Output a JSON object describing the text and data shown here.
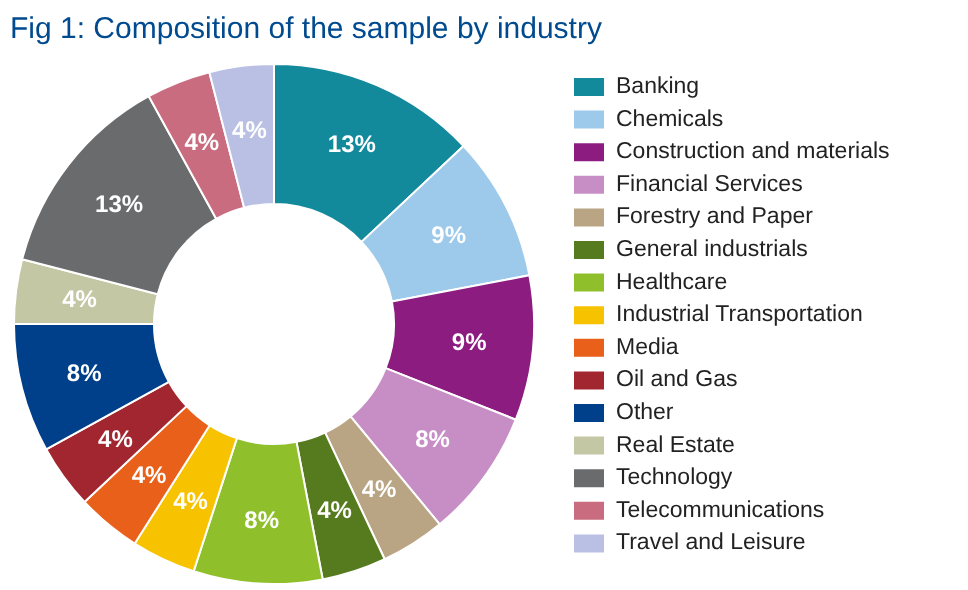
{
  "chart_data": {
    "type": "donut",
    "title": "Fig 1: Composition of the sample by industry",
    "categories": [
      "Banking",
      "Chemicals",
      "Construction and materials",
      "Financial Services",
      "Forestry and Paper",
      "General industrials",
      "Healthcare",
      "Industrial Transportation",
      "Media",
      "Oil and Gas",
      "Other",
      "Real Estate",
      "Technology",
      "Telecommunications",
      "Travel and Leisure"
    ],
    "values": [
      13,
      9,
      9,
      8,
      4,
      4,
      8,
      4,
      4,
      4,
      8,
      4,
      13,
      4,
      4
    ],
    "value_labels": [
      "13%",
      "9%",
      "9%",
      "8%",
      "4%",
      "4%",
      "8%",
      "4%",
      "4%",
      "4%",
      "8%",
      "4%",
      "13%",
      "4%",
      "4%"
    ],
    "colors": [
      "#138a9c",
      "#9dc9ea",
      "#8c1c80",
      "#c78ec6",
      "#b9a583",
      "#567a1e",
      "#8fc02c",
      "#f7c200",
      "#e9601a",
      "#a2262f",
      "#00408a",
      "#c4c7a4",
      "#6a6b6d",
      "#c96c80",
      "#b9c0e4"
    ],
    "legend": "right"
  }
}
